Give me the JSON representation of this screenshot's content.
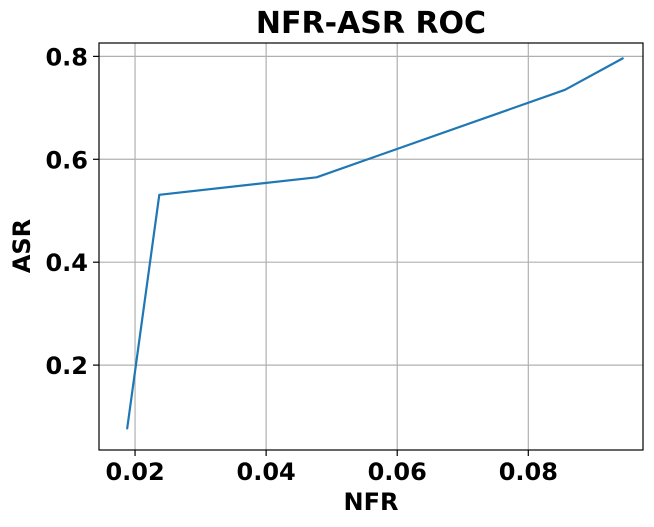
{
  "chart_data": {
    "type": "line",
    "title": "NFR-ASR ROC",
    "xlabel": "NFR",
    "ylabel": "ASR",
    "xlim": [
      0.0145,
      0.0975
    ],
    "ylim": [
      0.035,
      0.826
    ],
    "x_ticks": [
      0.02,
      0.04,
      0.06,
      0.08
    ],
    "x_tick_labels": [
      "0.02",
      "0.04",
      "0.06",
      "0.08"
    ],
    "y_ticks": [
      0.2,
      0.4,
      0.6,
      0.8
    ],
    "y_tick_labels": [
      "0.2",
      "0.4",
      "0.6",
      "0.8"
    ],
    "grid": true,
    "series": [
      {
        "color": "#1f77b4",
        "x": [
          0.0188,
          0.0237,
          0.0477,
          0.0856,
          0.0944
        ],
        "y": [
          0.077,
          0.531,
          0.565,
          0.735,
          0.796
        ]
      }
    ]
  }
}
